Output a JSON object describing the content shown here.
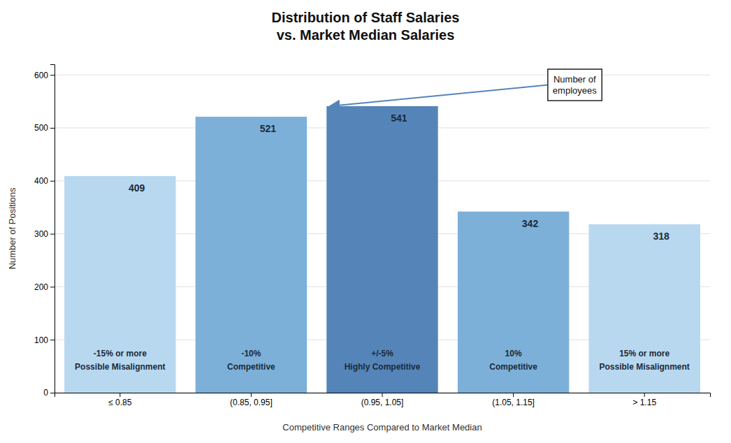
{
  "chart_data": {
    "type": "bar",
    "title": "Distribution of Staff Salaries\nvs. Market Median Salaries",
    "x_label": "Competitive Ranges Compared to Market Median",
    "y_label": "Number of Positions",
    "categories": [
      "≤ 0.85",
      "(0.85, 0.95]",
      "(0.95, 1.05]",
      "(1.05, 1.15]",
      "> 1.15"
    ],
    "values": [
      409,
      521,
      541,
      342,
      318
    ],
    "colors": [
      "#b8d8f0",
      "#7db0d8",
      "#5585b8",
      "#7db0d8",
      "#b8d8f0"
    ],
    "bar_labels": [
      "-15% or more\nPossible Misalignment",
      "-10%\nCompetitive",
      "+/-5%\nHighly Competitive",
      "10%\nCompetitive",
      "15% or more\nPossible Misalignment"
    ],
    "annotations": [
      {
        "text": "Number of\nemployees",
        "x": "(0.95, 1.05]",
        "y": 541
      }
    ],
    "ylim": [
      0,
      620
    ],
    "yticks": [
      0,
      100,
      200,
      300,
      400,
      500,
      600
    ],
    "grid": true,
    "data_labels": true
  }
}
